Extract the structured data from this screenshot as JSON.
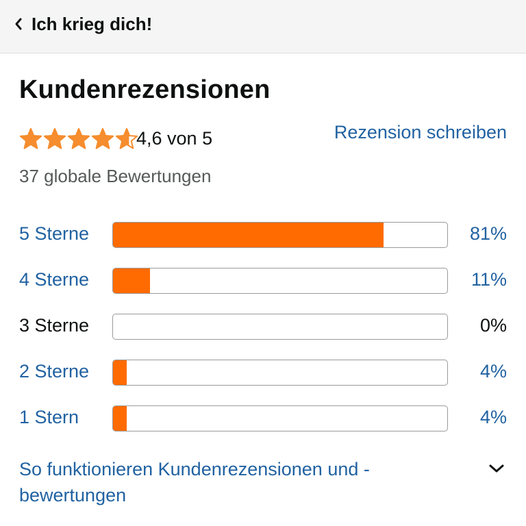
{
  "header": {
    "back_icon": "chevron-left-icon",
    "title": "Ich krieg dich!"
  },
  "reviews": {
    "section_title": "Kundenrezensionen",
    "rating": 4.6,
    "rating_text": "4,6 von 5",
    "write_review_label": "Rezension schreiben",
    "global_ratings_text": "37 globale Bewertungen",
    "histogram": [
      {
        "label": "5 Sterne",
        "percent_text": "81%",
        "fraction": 0.81,
        "enabled": true
      },
      {
        "label": "4 Sterne",
        "percent_text": "11%",
        "fraction": 0.11,
        "enabled": true
      },
      {
        "label": "3 Sterne",
        "percent_text": "0%",
        "fraction": 0.0,
        "enabled": false
      },
      {
        "label": "2 Sterne",
        "percent_text": "4%",
        "fraction": 0.04,
        "enabled": true
      },
      {
        "label": "1 Stern",
        "percent_text": "4%",
        "fraction": 0.04,
        "enabled": true
      }
    ],
    "how_it_works_label": "So funktionieren Kundenrezensionen und -bewertungen",
    "expand_icon": "chevron-down-icon"
  },
  "colors": {
    "star": "#f68d2e",
    "bar_fill": "#ff6b00",
    "link": "#2162a1",
    "text": "#0f1111",
    "muted_text": "#565959",
    "header_bg": "#f5f5f5"
  }
}
